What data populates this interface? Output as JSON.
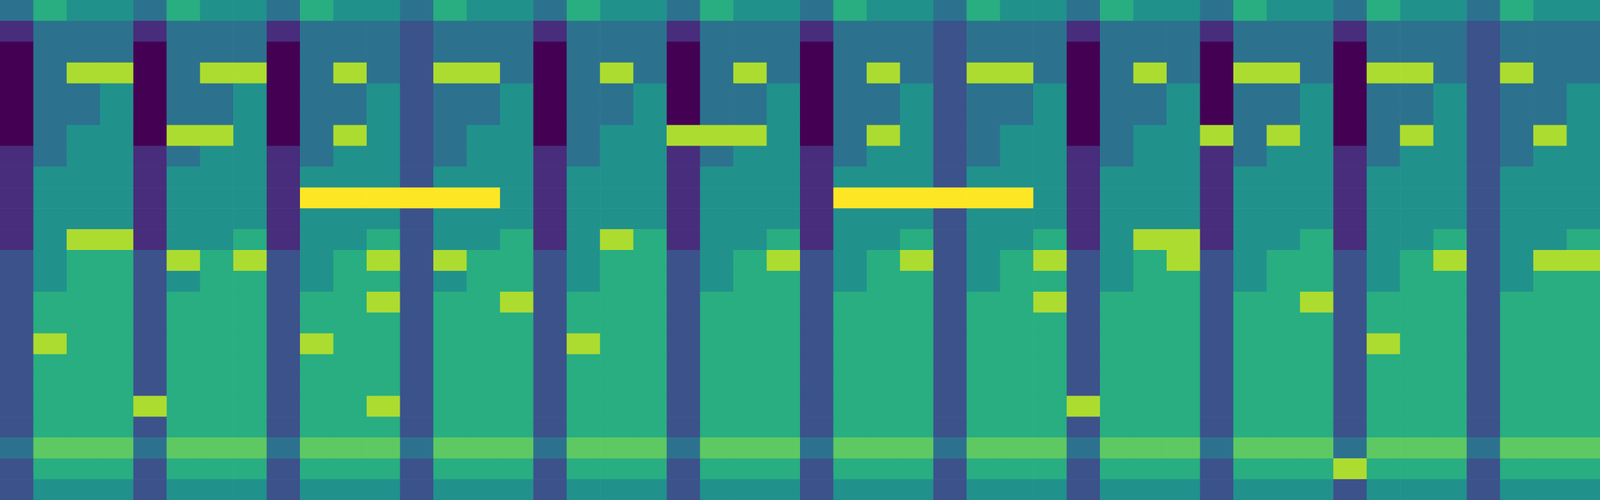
{
  "chart_data": {
    "type": "heatmap",
    "tick_labels": false,
    "cells": [
      [
        4,
        6,
        5,
        5,
        4,
        6,
        5,
        5,
        4,
        6,
        5,
        5,
        4,
        6,
        5,
        5,
        4,
        6,
        5,
        5,
        4,
        6,
        5,
        5,
        4,
        6,
        5,
        5,
        4,
        6,
        5,
        5,
        4,
        6,
        5,
        5,
        4,
        6,
        5,
        5,
        4,
        6,
        5,
        5,
        4,
        6,
        5,
        5
      ],
      [
        2,
        4,
        4,
        4,
        2,
        4,
        4,
        4,
        2,
        4,
        4,
        4,
        3,
        4,
        4,
        4,
        2,
        4,
        4,
        4,
        2,
        4,
        4,
        4,
        2,
        4,
        4,
        4,
        3,
        4,
        4,
        4,
        2,
        4,
        4,
        4,
        2,
        4,
        4,
        4,
        2,
        4,
        4,
        4,
        3,
        4,
        4,
        4
      ],
      [
        1,
        4,
        4,
        4,
        1,
        4,
        4,
        4,
        1,
        4,
        4,
        4,
        3,
        4,
        4,
        4,
        1,
        4,
        4,
        4,
        1,
        4,
        4,
        4,
        1,
        4,
        4,
        4,
        3,
        4,
        4,
        4,
        1,
        4,
        4,
        4,
        1,
        4,
        4,
        4,
        1,
        4,
        4,
        4,
        3,
        4,
        4,
        4
      ],
      [
        1,
        4,
        8,
        8,
        1,
        4,
        8,
        8,
        1,
        4,
        8,
        4,
        3,
        8,
        8,
        4,
        1,
        4,
        8,
        4,
        1,
        4,
        8,
        4,
        1,
        4,
        8,
        4,
        3,
        8,
        8,
        4,
        1,
        4,
        8,
        4,
        1,
        8,
        8,
        4,
        1,
        8,
        8,
        4,
        3,
        8,
        4,
        4
      ],
      [
        1,
        4,
        4,
        5,
        1,
        4,
        4,
        5,
        1,
        4,
        4,
        5,
        3,
        4,
        4,
        5,
        1,
        4,
        4,
        5,
        1,
        4,
        4,
        5,
        1,
        4,
        4,
        5,
        3,
        4,
        4,
        5,
        1,
        4,
        4,
        5,
        1,
        4,
        4,
        5,
        1,
        4,
        4,
        5,
        3,
        4,
        4,
        5
      ],
      [
        1,
        4,
        4,
        5,
        1,
        4,
        4,
        5,
        1,
        4,
        4,
        5,
        3,
        4,
        4,
        5,
        1,
        4,
        4,
        5,
        1,
        4,
        4,
        5,
        1,
        4,
        4,
        5,
        3,
        4,
        4,
        5,
        1,
        4,
        4,
        5,
        1,
        4,
        4,
        5,
        1,
        4,
        4,
        5,
        3,
        4,
        4,
        5
      ],
      [
        1,
        4,
        5,
        5,
        1,
        8,
        8,
        5,
        1,
        4,
        8,
        5,
        3,
        4,
        5,
        5,
        1,
        4,
        5,
        5,
        8,
        8,
        8,
        5,
        1,
        4,
        8,
        5,
        3,
        4,
        5,
        5,
        1,
        4,
        5,
        5,
        8,
        4,
        8,
        5,
        1,
        4,
        8,
        5,
        3,
        4,
        8,
        5
      ],
      [
        2,
        4,
        5,
        5,
        2,
        4,
        5,
        5,
        2,
        4,
        5,
        5,
        3,
        4,
        5,
        5,
        2,
        4,
        5,
        5,
        2,
        4,
        5,
        5,
        2,
        4,
        5,
        5,
        3,
        4,
        5,
        5,
        2,
        4,
        5,
        5,
        2,
        4,
        5,
        5,
        2,
        4,
        5,
        5,
        3,
        4,
        5,
        5
      ],
      [
        2,
        5,
        5,
        5,
        2,
        5,
        5,
        5,
        2,
        5,
        5,
        5,
        3,
        5,
        5,
        5,
        2,
        5,
        5,
        5,
        2,
        5,
        5,
        5,
        2,
        5,
        5,
        5,
        3,
        5,
        5,
        5,
        2,
        5,
        5,
        5,
        2,
        5,
        5,
        5,
        2,
        5,
        5,
        5,
        3,
        5,
        5,
        5
      ],
      [
        2,
        5,
        5,
        5,
        2,
        5,
        5,
        5,
        2,
        9,
        9,
        9,
        9,
        9,
        9,
        5,
        2,
        5,
        5,
        5,
        2,
        5,
        5,
        5,
        2,
        9,
        9,
        9,
        9,
        9,
        9,
        5,
        2,
        5,
        5,
        5,
        2,
        5,
        5,
        5,
        2,
        5,
        5,
        5,
        3,
        5,
        5,
        5
      ],
      [
        2,
        5,
        5,
        5,
        2,
        5,
        5,
        5,
        2,
        5,
        5,
        5,
        3,
        5,
        5,
        5,
        2,
        5,
        5,
        5,
        2,
        5,
        5,
        5,
        2,
        5,
        5,
        5,
        3,
        5,
        5,
        5,
        2,
        5,
        5,
        5,
        2,
        5,
        5,
        5,
        2,
        5,
        5,
        5,
        3,
        5,
        5,
        5
      ],
      [
        2,
        5,
        8,
        8,
        2,
        5,
        5,
        6,
        2,
        5,
        5,
        6,
        3,
        5,
        5,
        6,
        2,
        5,
        8,
        6,
        2,
        5,
        5,
        6,
        2,
        5,
        5,
        6,
        3,
        5,
        5,
        6,
        2,
        5,
        8,
        8,
        2,
        5,
        5,
        6,
        2,
        5,
        5,
        6,
        3,
        5,
        5,
        6
      ],
      [
        3,
        5,
        6,
        6,
        3,
        8,
        6,
        8,
        3,
        5,
        6,
        8,
        3,
        8,
        6,
        6,
        3,
        5,
        6,
        6,
        3,
        5,
        6,
        8,
        3,
        5,
        6,
        8,
        3,
        5,
        6,
        8,
        3,
        5,
        6,
        8,
        3,
        5,
        6,
        6,
        3,
        5,
        6,
        8,
        3,
        5,
        8,
        8
      ],
      [
        3,
        5,
        6,
        6,
        3,
        5,
        6,
        6,
        3,
        5,
        6,
        6,
        3,
        5,
        6,
        6,
        3,
        5,
        6,
        6,
        3,
        5,
        6,
        6,
        3,
        5,
        6,
        6,
        3,
        5,
        6,
        6,
        3,
        5,
        6,
        6,
        3,
        5,
        6,
        6,
        3,
        5,
        6,
        6,
        3,
        5,
        6,
        6
      ],
      [
        3,
        6,
        6,
        6,
        3,
        6,
        6,
        6,
        3,
        6,
        6,
        8,
        3,
        6,
        6,
        8,
        3,
        6,
        6,
        6,
        3,
        6,
        6,
        6,
        3,
        6,
        6,
        6,
        3,
        6,
        6,
        8,
        3,
        6,
        6,
        6,
        3,
        6,
        6,
        8,
        3,
        6,
        6,
        6,
        3,
        6,
        6,
        6
      ],
      [
        3,
        6,
        6,
        6,
        3,
        6,
        6,
        6,
        3,
        6,
        6,
        6,
        3,
        6,
        6,
        6,
        3,
        6,
        6,
        6,
        3,
        6,
        6,
        6,
        3,
        6,
        6,
        6,
        3,
        6,
        6,
        6,
        3,
        6,
        6,
        6,
        3,
        6,
        6,
        6,
        3,
        6,
        6,
        6,
        3,
        6,
        6,
        6
      ],
      [
        3,
        8,
        6,
        6,
        3,
        6,
        6,
        6,
        3,
        8,
        6,
        6,
        3,
        6,
        6,
        6,
        3,
        8,
        6,
        6,
        3,
        6,
        6,
        6,
        3,
        6,
        6,
        6,
        3,
        6,
        6,
        6,
        3,
        6,
        6,
        6,
        3,
        6,
        6,
        6,
        3,
        8,
        6,
        6,
        3,
        6,
        6,
        6
      ],
      [
        3,
        6,
        6,
        6,
        3,
        6,
        6,
        6,
        3,
        6,
        6,
        6,
        3,
        6,
        6,
        6,
        3,
        6,
        6,
        6,
        3,
        6,
        6,
        6,
        3,
        6,
        6,
        6,
        3,
        6,
        6,
        6,
        3,
        6,
        6,
        6,
        3,
        6,
        6,
        6,
        3,
        6,
        6,
        6,
        3,
        6,
        6,
        6
      ],
      [
        3,
        6,
        6,
        6,
        3,
        6,
        6,
        6,
        3,
        6,
        6,
        6,
        3,
        6,
        6,
        6,
        3,
        6,
        6,
        6,
        3,
        6,
        6,
        6,
        3,
        6,
        6,
        6,
        3,
        6,
        6,
        6,
        3,
        6,
        6,
        6,
        3,
        6,
        6,
        6,
        3,
        6,
        6,
        6,
        3,
        6,
        6,
        6
      ],
      [
        3,
        6,
        6,
        6,
        8,
        6,
        6,
        6,
        3,
        6,
        6,
        8,
        3,
        6,
        6,
        6,
        3,
        6,
        6,
        6,
        3,
        6,
        6,
        6,
        3,
        6,
        6,
        6,
        3,
        6,
        6,
        6,
        8,
        6,
        6,
        6,
        3,
        6,
        6,
        6,
        3,
        6,
        6,
        6,
        3,
        6,
        6,
        6
      ],
      [
        3,
        6,
        6,
        6,
        3,
        6,
        6,
        6,
        3,
        6,
        6,
        6,
        3,
        6,
        6,
        6,
        3,
        6,
        6,
        6,
        3,
        6,
        6,
        6,
        3,
        6,
        6,
        6,
        3,
        6,
        6,
        6,
        3,
        6,
        6,
        6,
        3,
        6,
        6,
        6,
        3,
        6,
        6,
        6,
        3,
        6,
        6,
        6
      ],
      [
        4,
        7,
        7,
        7,
        4,
        7,
        7,
        7,
        4,
        7,
        7,
        7,
        4,
        7,
        7,
        7,
        4,
        7,
        7,
        7,
        4,
        7,
        7,
        7,
        4,
        7,
        7,
        7,
        4,
        7,
        7,
        7,
        4,
        7,
        7,
        7,
        4,
        7,
        7,
        7,
        4,
        7,
        7,
        7,
        4,
        7,
        7,
        7
      ],
      [
        3,
        6,
        6,
        6,
        3,
        6,
        6,
        6,
        3,
        6,
        6,
        6,
        3,
        6,
        6,
        6,
        3,
        6,
        6,
        6,
        3,
        6,
        6,
        6,
        3,
        6,
        6,
        6,
        3,
        6,
        6,
        6,
        3,
        6,
        6,
        6,
        3,
        6,
        6,
        6,
        8,
        6,
        6,
        6,
        3,
        6,
        6,
        6
      ],
      [
        3,
        5,
        5,
        5,
        3,
        5,
        5,
        5,
        3,
        5,
        5,
        5,
        3,
        5,
        5,
        5,
        3,
        5,
        5,
        5,
        3,
        5,
        5,
        5,
        3,
        5,
        5,
        5,
        3,
        5,
        5,
        5,
        3,
        5,
        5,
        5,
        3,
        5,
        5,
        5,
        3,
        5,
        5,
        5,
        3,
        5,
        5,
        5
      ]
    ]
  }
}
